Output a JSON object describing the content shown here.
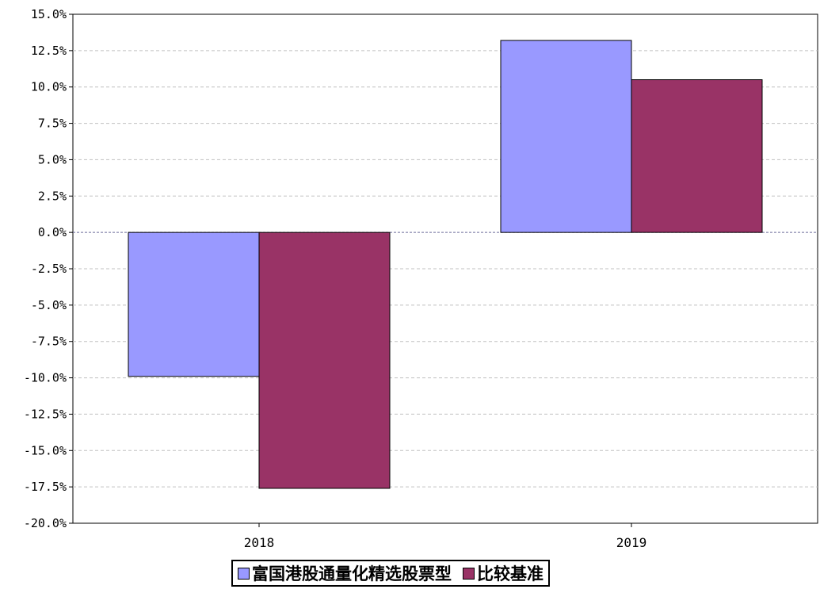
{
  "chart_data": {
    "type": "bar",
    "categories": [
      "2018",
      "2019"
    ],
    "series": [
      {
        "name": "富国港股通量化精选股票型",
        "values": [
          -9.9,
          13.2
        ],
        "color": "#9999ff"
      },
      {
        "name": "比较基准",
        "values": [
          -17.6,
          10.5
        ],
        "color": "#993366"
      }
    ],
    "ylim": [
      -20.0,
      15.0
    ],
    "y_ticks": [
      "-20.0%",
      "-17.5%",
      "-15.0%",
      "-12.5%",
      "-10.0%",
      "-7.5%",
      "-5.0%",
      "-2.5%",
      "0.0%",
      "2.5%",
      "5.0%",
      "7.5%",
      "10.0%",
      "12.5%",
      "15.0%"
    ],
    "title": "",
    "xlabel": "",
    "ylabel": "",
    "grid": true,
    "legend_position": "bottom-center"
  }
}
